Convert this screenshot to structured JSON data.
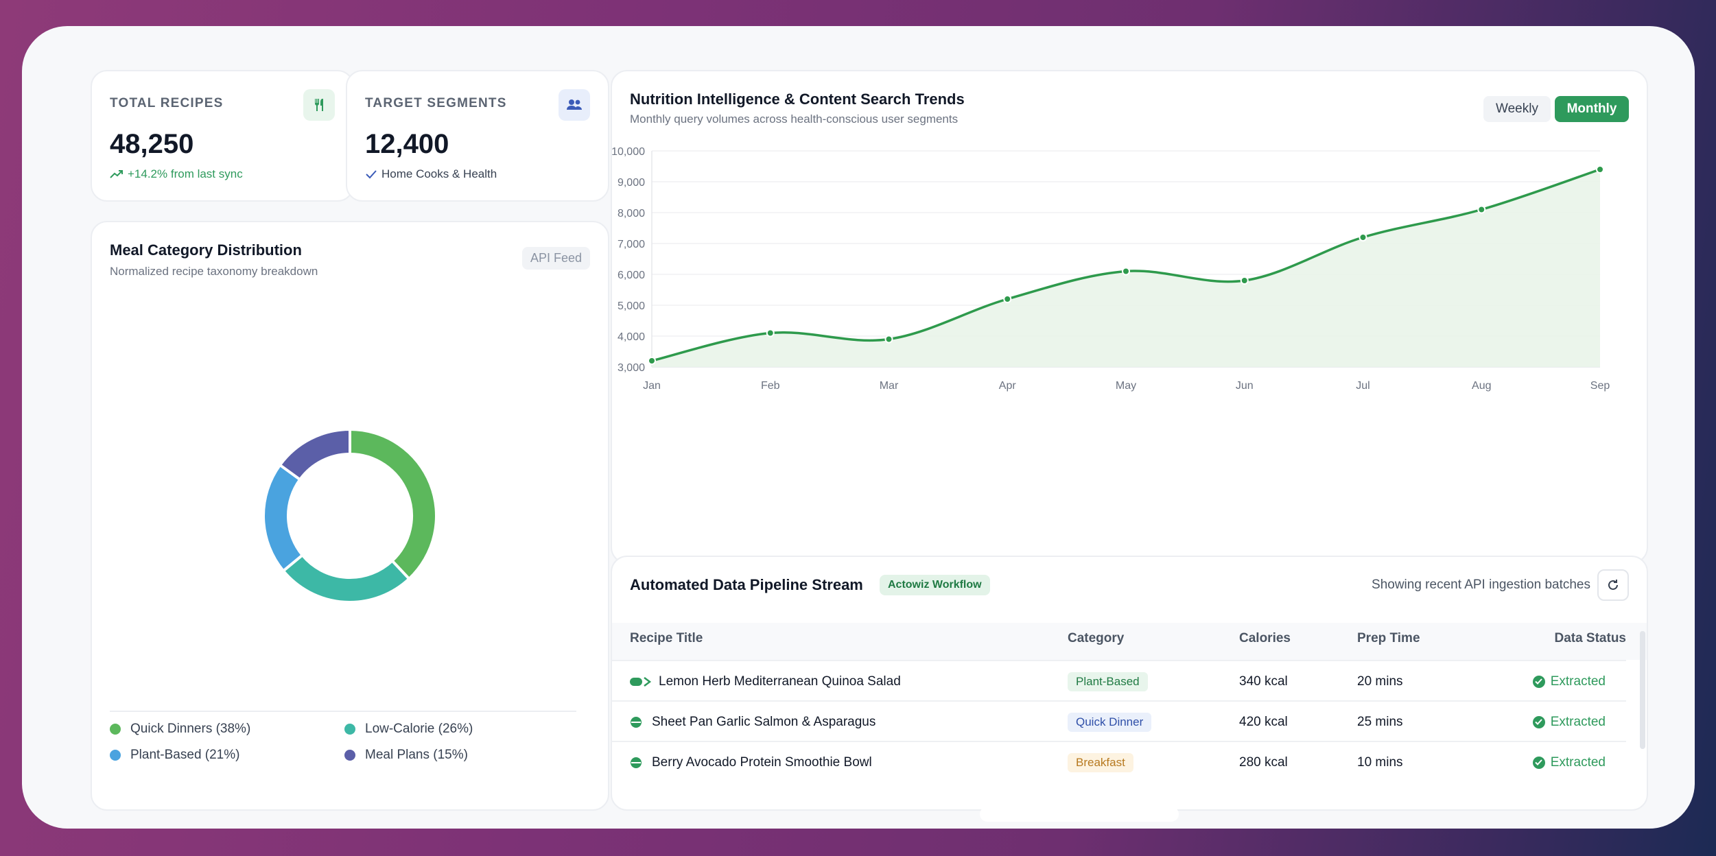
{
  "stats": {
    "recipes": {
      "label": "TOTAL RECIPES",
      "value": "48,250",
      "sub": "+14.2% from last sync",
      "icon": "utensils-icon"
    },
    "segments": {
      "label": "TARGET SEGMENTS",
      "value": "12,400",
      "sub": "Home Cooks & Health",
      "icon": "users-icon"
    }
  },
  "distribution": {
    "title": "Meal Category Distribution",
    "subtitle": "Normalized recipe taxonomy breakdown",
    "badge": "API Feed",
    "legend": [
      {
        "label": "Quick Dinners (38%)",
        "color": "#5cb85c"
      },
      {
        "label": "Low-Calorie (26%)",
        "color": "#3db8a6"
      },
      {
        "label": "Plant-Based (21%)",
        "color": "#4aa3df"
      },
      {
        "label": "Meal Plans (15%)",
        "color": "#5b5fa8"
      }
    ]
  },
  "trends": {
    "title": "Nutrition Intelligence & Content Search Trends",
    "subtitle": "Monthly query volumes across health-conscious user segments",
    "toggle_weekly": "Weekly",
    "toggle_monthly": "Monthly",
    "active_toggle": "Monthly"
  },
  "chart_data": [
    {
      "type": "pie",
      "categories": [
        "Quick Dinners",
        "Low-Calorie",
        "Plant-Based",
        "Meal Plans"
      ],
      "values": [
        38,
        26,
        21,
        15
      ],
      "colors": [
        "#5cb85c",
        "#3db8a6",
        "#4aa3df",
        "#5b5fa8"
      ],
      "donut": true
    },
    {
      "type": "area",
      "x": [
        "Jan",
        "Feb",
        "Mar",
        "Apr",
        "May",
        "Jun",
        "Jul",
        "Aug",
        "Sep"
      ],
      "values": [
        3200,
        4100,
        3900,
        5200,
        6100,
        5800,
        7200,
        8100,
        9400
      ],
      "ylim": [
        3000,
        10000
      ],
      "yticks": [
        "3,000",
        "4,000",
        "5,000",
        "6,000",
        "7,000",
        "8,000",
        "9,000",
        "10,000"
      ],
      "ytick_values": [
        3000,
        4000,
        5000,
        6000,
        7000,
        8000,
        9000,
        10000
      ],
      "color": "#2e9a4c",
      "fill": "#e9f4e9",
      "grid": true
    }
  ],
  "pipeline": {
    "title": "Automated Data Pipeline Stream",
    "tag": "Actowiz Workflow",
    "status_text": "Showing recent API ingestion batches",
    "columns": [
      "Recipe Title",
      "Category",
      "Calories",
      "Prep Time",
      "Data Status"
    ],
    "rows": [
      {
        "title": "Lemon Herb Mediterranean Quinoa Salad",
        "category": "Plant-Based",
        "cat_style": "green",
        "calories": "340 kcal",
        "prep": "20 mins",
        "status": "Extracted"
      },
      {
        "title": "Sheet Pan Garlic Salmon & Asparagus",
        "category": "Quick Dinner",
        "cat_style": "blue",
        "calories": "420 kcal",
        "prep": "25 mins",
        "status": "Extracted"
      },
      {
        "title": "Berry Avocado Protein Smoothie Bowl",
        "category": "Breakfast",
        "cat_style": "amber",
        "calories": "280 kcal",
        "prep": "10 mins",
        "status": "Extracted"
      }
    ]
  }
}
